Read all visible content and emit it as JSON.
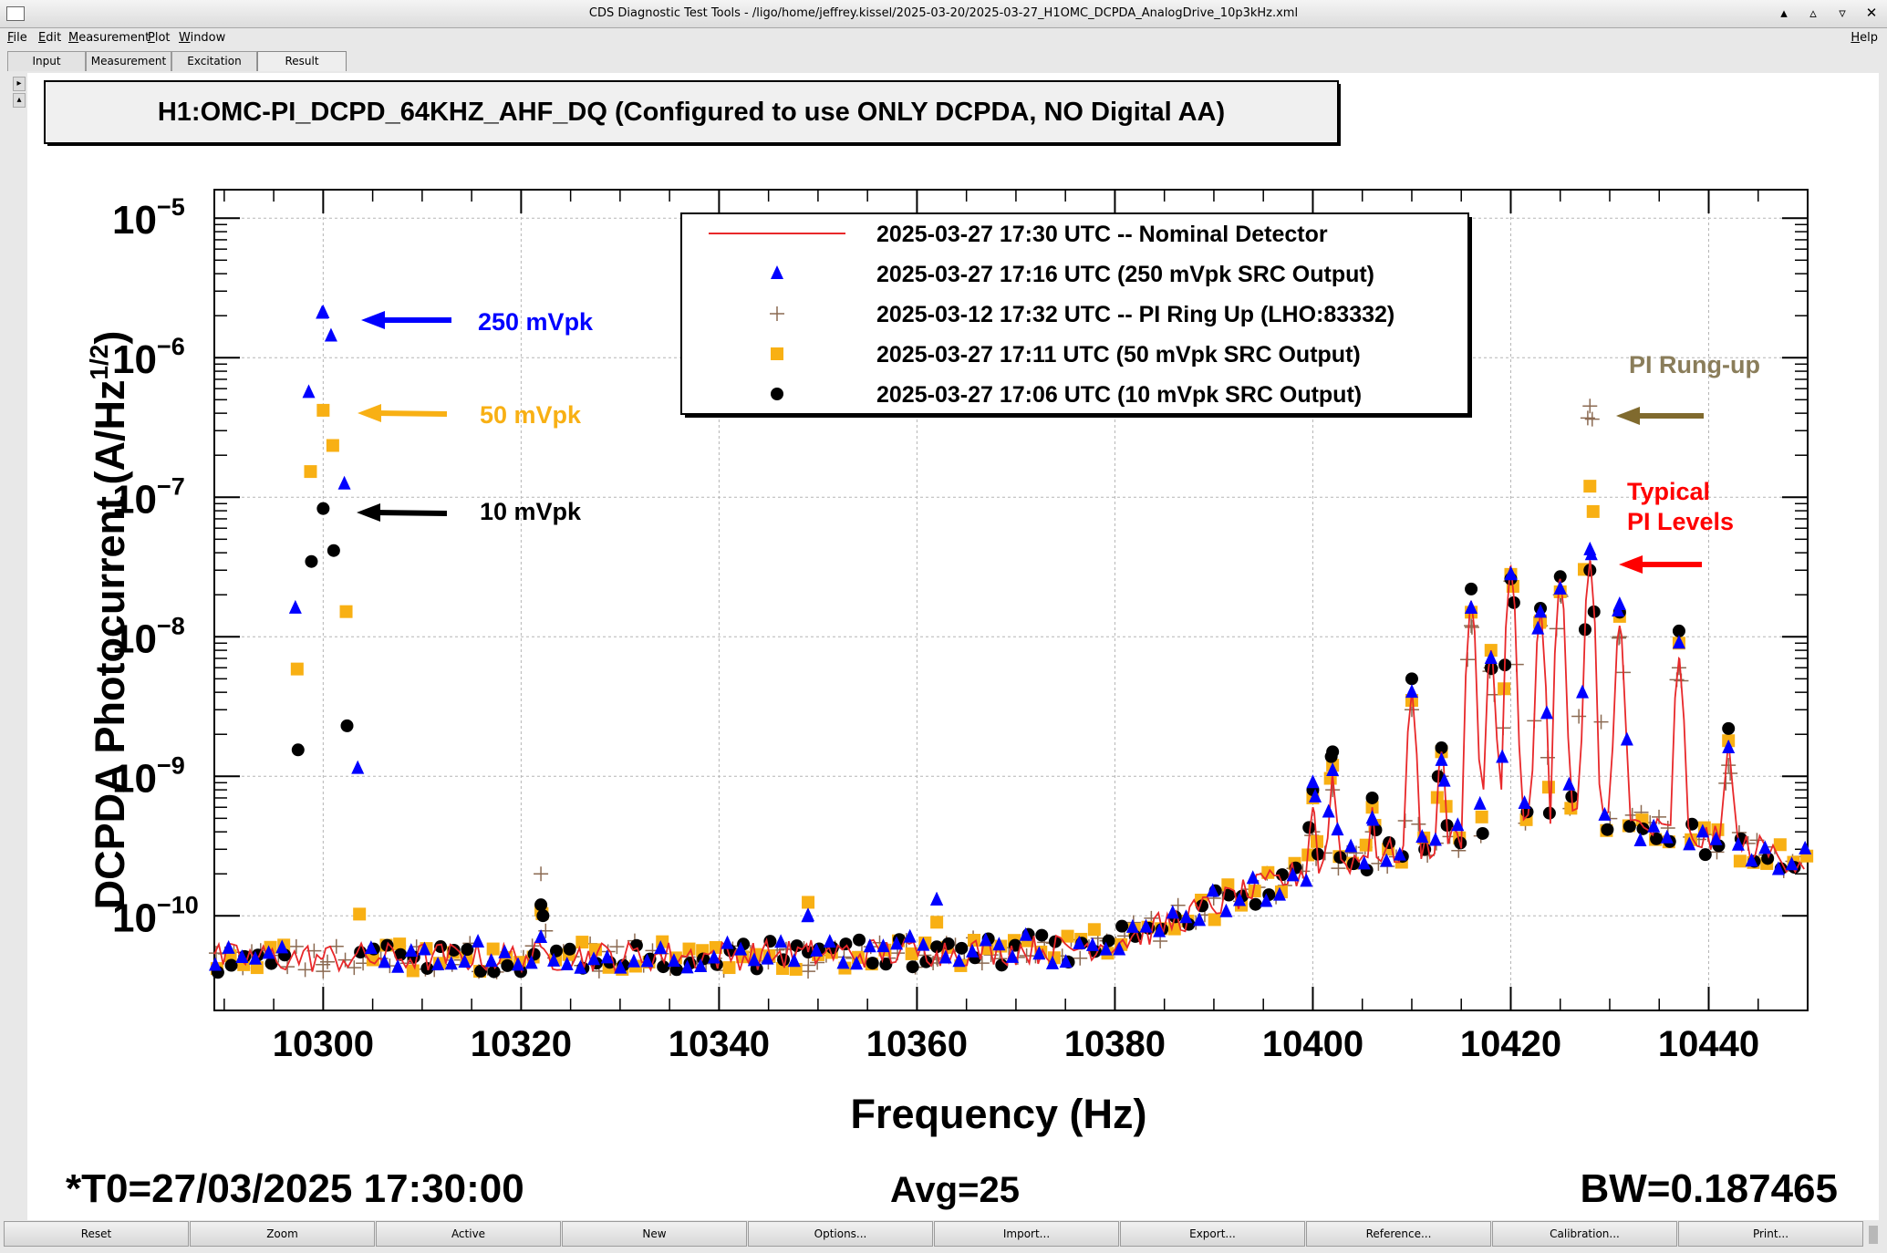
{
  "window": {
    "title": "CDS Diagnostic Test Tools - /ligo/home/jeffrey.kissel/2025-03-20/2025-03-27_H1OMC_DCPDA_AnalogDrive_10p3kHz.xml",
    "controls": [
      "▴",
      "▵",
      "▿",
      "✕"
    ]
  },
  "menubar": {
    "items": [
      "File",
      "Edit",
      "Measurement",
      "Plot",
      "Window"
    ],
    "help": "Help"
  },
  "tabs": [
    "Input",
    "Measurement",
    "Excitation",
    "Result"
  ],
  "side_arrows": [
    "▸",
    "▴"
  ],
  "bottom_buttons": [
    "Reset",
    "Zoom",
    "Active",
    "New",
    "Options...",
    "Import...",
    "Export...",
    "Reference...",
    "Calibration...",
    "Print..."
  ],
  "footer": {
    "t0": "*T0=27/03/2025 17:30:00",
    "avg": "Avg=25",
    "bw": "BW=0.187465",
    "t0_color": "#ff0000"
  },
  "annotations": {
    "a250": "250 mVpk",
    "a50": "50 mVpk",
    "a10": "10 mVpk",
    "rungup": "PI Rung-up",
    "typical1": "Typical",
    "typical2": "PI Levels"
  },
  "chart_data": {
    "type": "line",
    "title": "H1:OMC-PI_DCPD_64KHZ_AHF_DQ (Configured to use ONLY DCPDA, NO Digital AA)",
    "xlabel": "Frequency (Hz)",
    "ylabel_main": "DCPDA Photocurrent (A/Hz",
    "ylabel_sup": "1/2",
    "ylabel_close": ")",
    "xlim": [
      10289,
      10450
    ],
    "ylim": [
      2.1e-11,
      1.6e-05
    ],
    "yscale": "log",
    "grid": true,
    "legend_position": "top-center",
    "xticks": [
      10300,
      10320,
      10340,
      10360,
      10380,
      10400,
      10420,
      10440
    ],
    "xtick_labels": [
      "10300",
      "10320",
      "10340",
      "10360",
      "10380",
      "10400",
      "10420",
      "10440"
    ],
    "yticks": [
      1e-10,
      1e-09,
      1e-08,
      1e-07,
      1e-06,
      1e-05
    ],
    "ytick_labels": [
      {
        "base": "10",
        "exp": "−10"
      },
      {
        "base": "10",
        "exp": "−9"
      },
      {
        "base": "10",
        "exp": "−8"
      },
      {
        "base": "10",
        "exp": "−7"
      },
      {
        "base": "10",
        "exp": "−6"
      },
      {
        "base": "10",
        "exp": "−5"
      }
    ],
    "baseline_x": [
      10289,
      10300,
      10320,
      10340,
      10360,
      10375,
      10380,
      10385,
      10390,
      10395,
      10400,
      10405,
      10410,
      10415,
      10420,
      10425,
      10430,
      10435,
      10440,
      10445,
      10450
    ],
    "baseline_y": [
      5e-11,
      5e-11,
      5.1e-11,
      5.2e-11,
      5.5e-11,
      5.8e-11,
      6.5e-11,
      8.5e-11,
      1.2e-10,
      1.6e-10,
      2.2e-10,
      2.6e-10,
      3e-10,
      3.6e-10,
      5e-10,
      6e-10,
      5e-10,
      4e-10,
      3.5e-10,
      3e-10,
      2.4e-10
    ],
    "series": [
      {
        "name": "2025-03-27 17:30 UTC -- Nominal Detector",
        "color": "#e8282a",
        "marker": "line",
        "peaks": [
          [
            10300,
            5e-11
          ],
          [
            10322,
            6e-11
          ],
          [
            10349,
            5.5e-11
          ],
          [
            10362,
            5.5e-11
          ],
          [
            10400,
            6e-10
          ],
          [
            10402,
            1e-09
          ],
          [
            10406,
            6e-10
          ],
          [
            10410,
            4e-09
          ],
          [
            10413,
            1.5e-09
          ],
          [
            10416,
            1.8e-08
          ],
          [
            10418,
            8e-09
          ],
          [
            10420,
            3.2e-08
          ],
          [
            10423,
            1.5e-08
          ],
          [
            10425,
            2.6e-08
          ],
          [
            10428,
            3.5e-08
          ],
          [
            10431,
            1.2e-08
          ],
          [
            10437,
            7e-09
          ],
          [
            10442,
            1.8e-09
          ]
        ]
      },
      {
        "name": "2025-03-27 17:16 UTC (250 mVpk SRC Output)",
        "color": "#0000ff",
        "marker": "triangle",
        "peaks": [
          [
            10300,
            2.1e-06
          ],
          [
            10322,
            7e-11
          ],
          [
            10349,
            1e-10
          ],
          [
            10362,
            1.3e-10
          ],
          [
            10400,
            9e-10
          ],
          [
            10402,
            1.1e-09
          ],
          [
            10406,
            5e-10
          ],
          [
            10410,
            4e-09
          ],
          [
            10413,
            1.3e-09
          ],
          [
            10416,
            1.6e-08
          ],
          [
            10418,
            7e-09
          ],
          [
            10420,
            2.8e-08
          ],
          [
            10423,
            1.5e-08
          ],
          [
            10425,
            2.2e-08
          ],
          [
            10428,
            4.2e-08
          ],
          [
            10431,
            1.7e-08
          ],
          [
            10437,
            9e-09
          ],
          [
            10442,
            1.6e-09
          ]
        ]
      },
      {
        "name": "2025-03-12 17:32 UTC -- PI Ring Up (LHO:83332)",
        "color": "#8b6a52",
        "marker": "plus",
        "peaks": [
          [
            10300,
            4e-11
          ],
          [
            10322,
            2e-10
          ],
          [
            10349,
            4e-11
          ],
          [
            10362,
            5e-11
          ],
          [
            10400,
            4e-10
          ],
          [
            10402,
            8e-10
          ],
          [
            10406,
            4e-10
          ],
          [
            10410,
            3e-09
          ],
          [
            10413,
            1e-09
          ],
          [
            10416,
            1.2e-08
          ],
          [
            10418,
            6e-09
          ],
          [
            10420,
            2.5e-08
          ],
          [
            10423,
            1.2e-08
          ],
          [
            10425,
            2e-08
          ],
          [
            10428,
            4.5e-07
          ],
          [
            10431,
            1e-08
          ],
          [
            10437,
            6e-09
          ],
          [
            10442,
            1.2e-09
          ]
        ]
      },
      {
        "name": "2025-03-27 17:11 UTC (50 mVpk SRC Output)",
        "color": "#f8b014",
        "marker": "square",
        "peaks": [
          [
            10300,
            4.2e-07
          ],
          [
            10322,
            1.1e-10
          ],
          [
            10349,
            1.25e-10
          ],
          [
            10362,
            9e-11
          ],
          [
            10400,
            7e-10
          ],
          [
            10402,
            1.2e-09
          ],
          [
            10406,
            6e-10
          ],
          [
            10410,
            3.5e-09
          ],
          [
            10413,
            1.5e-09
          ],
          [
            10416,
            1.5e-08
          ],
          [
            10418,
            8e-09
          ],
          [
            10420,
            2.8e-08
          ],
          [
            10423,
            1.3e-08
          ],
          [
            10425,
            2.1e-08
          ],
          [
            10428,
            1.2e-07
          ],
          [
            10431,
            1.4e-08
          ],
          [
            10437,
            9e-09
          ],
          [
            10442,
            1.8e-09
          ]
        ]
      },
      {
        "name": "2025-03-27 17:06 UTC (10 mVpk SRC Output)",
        "color": "#000000",
        "marker": "circle",
        "peaks": [
          [
            10300,
            8.3e-08
          ],
          [
            10322,
            1.2e-10
          ],
          [
            10349,
            5.5e-11
          ],
          [
            10362,
            6e-11
          ],
          [
            10400,
            8e-10
          ],
          [
            10402,
            1.5e-09
          ],
          [
            10406,
            7e-10
          ],
          [
            10410,
            5e-09
          ],
          [
            10413,
            1.6e-09
          ],
          [
            10416,
            2.2e-08
          ],
          [
            10418,
            6e-09
          ],
          [
            10420,
            2.6e-08
          ],
          [
            10423,
            1.6e-08
          ],
          [
            10425,
            2.7e-08
          ],
          [
            10428,
            3e-08
          ],
          [
            10431,
            1.5e-08
          ],
          [
            10437,
            1.1e-08
          ],
          [
            10442,
            2.2e-09
          ]
        ]
      }
    ]
  }
}
